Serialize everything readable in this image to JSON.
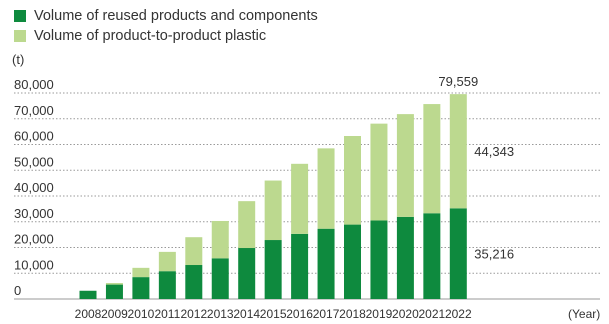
{
  "legend": {
    "reused": "Volume of reused products and components",
    "plastic": "Volume of product-to-product plastic"
  },
  "unit_label": "(t)",
  "colors": {
    "reused": "#0e8a3e",
    "plastic": "#bcd98f",
    "grid": "#9a9a9a"
  },
  "chart_data": {
    "type": "bar",
    "stacked": true,
    "categories": [
      "2008",
      "2009",
      "2010",
      "2011",
      "2012",
      "2013",
      "2014",
      "2015",
      "2016",
      "2017",
      "2018",
      "2019",
      "2020",
      "2021",
      "2022"
    ],
    "series": [
      {
        "name": "Volume of reused products and components",
        "values": [
          3200,
          5600,
          8500,
          10800,
          13200,
          15800,
          19800,
          22900,
          25300,
          27300,
          28900,
          30500,
          31900,
          33300,
          35216
        ]
      },
      {
        "name": "Volume of product-to-product plastic",
        "values": [
          0,
          600,
          3600,
          7500,
          10800,
          14500,
          18200,
          23100,
          27200,
          31200,
          34400,
          37600,
          39900,
          42400,
          44343
        ]
      }
    ],
    "ylim": [
      0,
      80000
    ],
    "yticks": [
      "0",
      "10,000",
      "20,000",
      "30,000",
      "40,000",
      "50,000",
      "60,000",
      "70,000",
      "80,000"
    ],
    "grid": true,
    "xaxis_unit": "(Year)",
    "data_labels": {
      "total_2022": "79,559",
      "plastic_2022": "44,343",
      "reused_2022": "35,216"
    }
  }
}
